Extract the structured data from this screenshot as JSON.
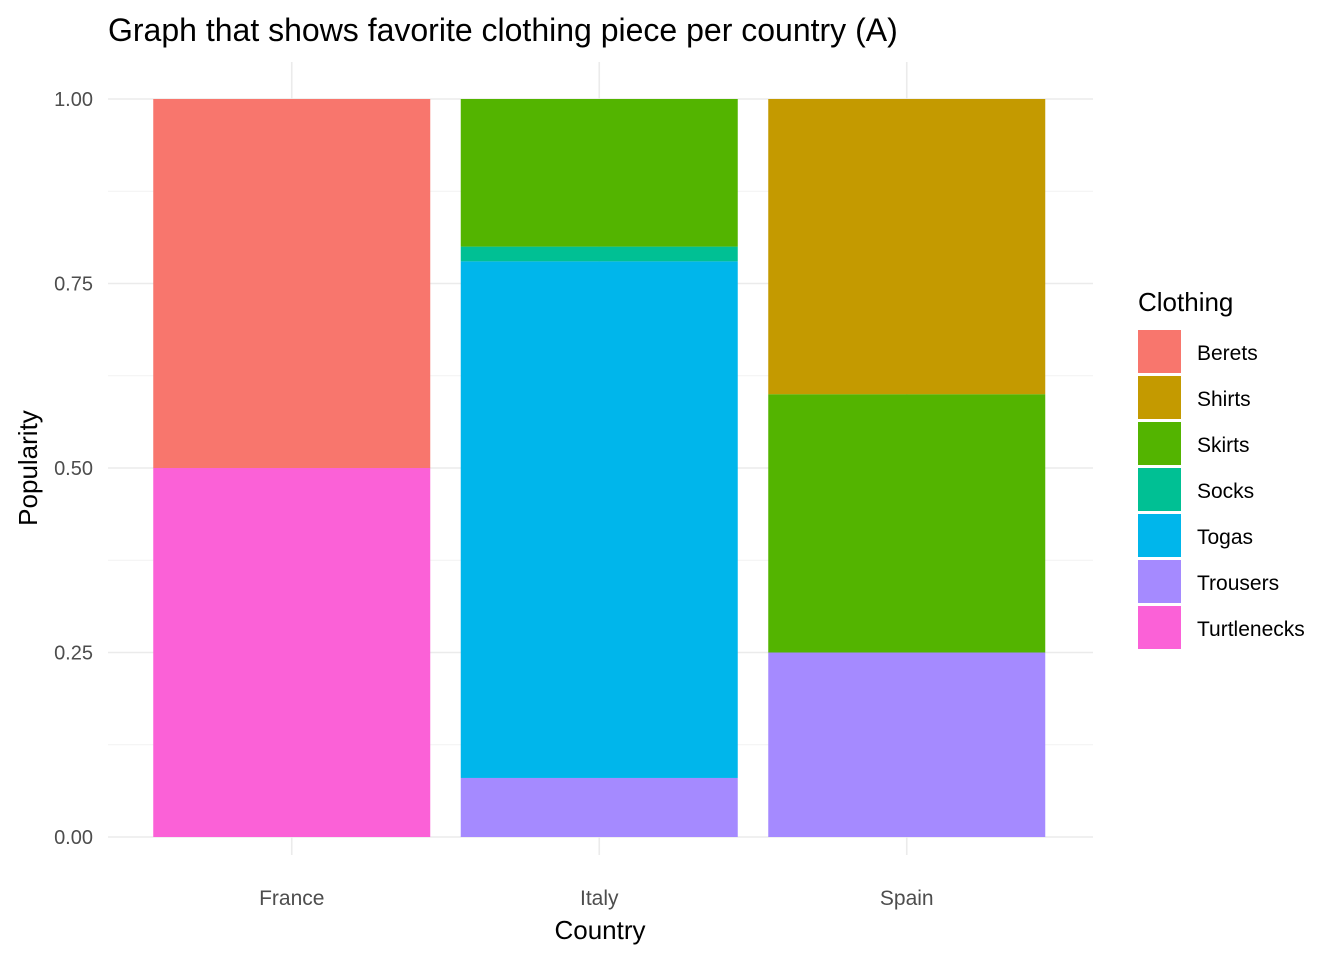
{
  "chart_data": {
    "type": "bar",
    "stacked": true,
    "title": "Graph that shows favorite clothing piece per country (A)",
    "xlabel": "Country",
    "ylabel": "Popularity",
    "categories": [
      "France",
      "Italy",
      "Spain"
    ],
    "ylim": [
      0,
      1
    ],
    "yticks": [
      "0.00",
      "0.25",
      "0.50",
      "0.75",
      "1.00"
    ],
    "grid": true,
    "legend": {
      "title": "Clothing",
      "placement": "right",
      "entries": [
        "Berets",
        "Shirts",
        "Skirts",
        "Socks",
        "Togas",
        "Trousers",
        "Turtlenecks"
      ]
    },
    "series": [
      {
        "name": "Turtlenecks",
        "color": "#FB61D7",
        "values": [
          0.5,
          0,
          0
        ]
      },
      {
        "name": "Trousers",
        "color": "#A58AFF",
        "values": [
          0,
          0.08,
          0.25
        ]
      },
      {
        "name": "Togas",
        "color": "#00B6EB",
        "values": [
          0,
          0.7,
          0
        ]
      },
      {
        "name": "Socks",
        "color": "#00C094",
        "values": [
          0,
          0.02,
          0
        ]
      },
      {
        "name": "Skirts",
        "color": "#53B400",
        "values": [
          0,
          0.2,
          0.35
        ]
      },
      {
        "name": "Shirts",
        "color": "#C49A00",
        "values": [
          0,
          0,
          0.4
        ]
      },
      {
        "name": "Berets",
        "color": "#F8766D",
        "values": [
          0.5,
          0,
          0
        ]
      }
    ],
    "legend_colors": {
      "Berets": "#F8766D",
      "Shirts": "#C49A00",
      "Skirts": "#53B400",
      "Socks": "#00C094",
      "Togas": "#00B6EB",
      "Trousers": "#A58AFF",
      "Turtlenecks": "#FB61D7"
    }
  }
}
